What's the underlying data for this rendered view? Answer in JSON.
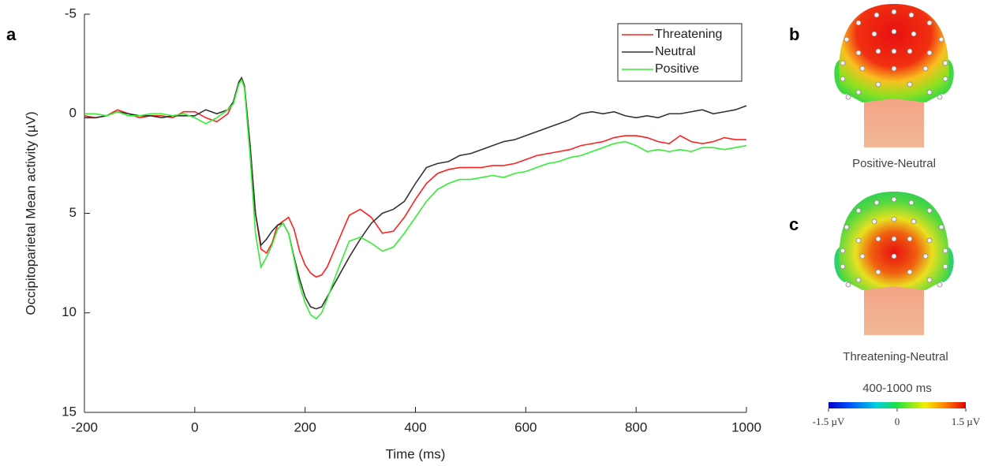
{
  "chart_data": {
    "type": "line",
    "panel_label": "a",
    "x_label": "Time (ms)",
    "y_label": "Occipitoparietal Mean activity (µV)",
    "xlim": [
      -200,
      1000
    ],
    "xticks": [
      -200,
      0,
      200,
      400,
      600,
      800,
      1000
    ],
    "ylim": [
      -5,
      15
    ],
    "yticks": [
      -5,
      0,
      5,
      10,
      15
    ],
    "y_reversed": true,
    "legend": "upper right",
    "x": [
      -200,
      -180,
      -160,
      -140,
      -120,
      -100,
      -80,
      -60,
      -40,
      -20,
      0,
      20,
      40,
      60,
      70,
      80,
      85,
      90,
      100,
      110,
      120,
      130,
      140,
      150,
      160,
      170,
      180,
      190,
      200,
      210,
      220,
      230,
      240,
      260,
      280,
      300,
      320,
      340,
      360,
      380,
      400,
      420,
      440,
      460,
      480,
      500,
      520,
      540,
      560,
      580,
      600,
      620,
      640,
      660,
      680,
      700,
      720,
      740,
      760,
      780,
      800,
      820,
      840,
      860,
      880,
      900,
      920,
      940,
      960,
      980,
      1000
    ],
    "series": [
      {
        "name": "Threatening",
        "color": "#ff2020",
        "values": [
          0.1,
          0.2,
          0.1,
          -0.2,
          0,
          0.2,
          0.1,
          0.1,
          0.2,
          -0.1,
          -0.1,
          0.2,
          0.4,
          0,
          -0.6,
          -1.6,
          -1.8,
          -1.4,
          1.5,
          5,
          6.8,
          7,
          6.5,
          5.6,
          5.4,
          5.2,
          5.8,
          6.9,
          7.6,
          8,
          8.2,
          8.1,
          7.7,
          6.4,
          5.1,
          4.8,
          5.2,
          6,
          5.9,
          5.2,
          4.3,
          3.5,
          3,
          2.8,
          2.7,
          2.7,
          2.7,
          2.6,
          2.6,
          2.5,
          2.3,
          2.1,
          2,
          1.9,
          1.8,
          1.6,
          1.5,
          1.4,
          1.2,
          1.1,
          1.1,
          1.2,
          1.4,
          1.5,
          1.1,
          1.4,
          1.5,
          1.4,
          1.2,
          1.3,
          1.3
        ]
      },
      {
        "name": "Neutral",
        "color": "#333333",
        "values": [
          0.2,
          0.2,
          0.1,
          -0.1,
          0,
          0.1,
          0.1,
          0.2,
          0.1,
          0.1,
          0.1,
          -0.2,
          0,
          -0.2,
          -0.6,
          -1.6,
          -1.8,
          -1.4,
          1.5,
          5,
          6.6,
          6.3,
          5.9,
          5.6,
          5.5,
          6,
          7.2,
          8.3,
          9.2,
          9.7,
          9.8,
          9.7,
          9.2,
          8.2,
          7.2,
          6.3,
          5.5,
          5,
          4.8,
          4.4,
          3.5,
          2.7,
          2.5,
          2.4,
          2.1,
          2,
          1.8,
          1.6,
          1.4,
          1.3,
          1.1,
          0.9,
          0.7,
          0.5,
          0.3,
          0,
          -0.1,
          0,
          -0.1,
          0.1,
          0.2,
          0.1,
          0.2,
          0,
          0,
          -0.1,
          -0.2,
          0,
          -0.1,
          -0.2,
          -0.4
        ]
      },
      {
        "name": "Positive",
        "color": "#33ee33",
        "values": [
          0,
          0,
          0.1,
          -0.1,
          0.1,
          0.1,
          0,
          0,
          0.1,
          0,
          0.2,
          0.5,
          0.2,
          -0.2,
          -0.5,
          -1.5,
          -1.7,
          -1.3,
          2,
          6,
          7.7,
          7.2,
          6.6,
          5.8,
          5.5,
          6,
          7.3,
          8.6,
          9.5,
          10.1,
          10.3,
          10,
          9.3,
          7.8,
          6.4,
          6.2,
          6.5,
          6.9,
          6.7,
          6,
          5.2,
          4.4,
          3.8,
          3.5,
          3.3,
          3.3,
          3.2,
          3.1,
          3.2,
          3,
          2.9,
          2.7,
          2.5,
          2.4,
          2.2,
          2.1,
          1.9,
          1.7,
          1.5,
          1.4,
          1.6,
          1.9,
          1.8,
          1.9,
          1.8,
          1.9,
          1.7,
          1.7,
          1.8,
          1.7,
          1.6
        ]
      }
    ]
  },
  "topomaps": [
    {
      "panel_label": "b",
      "caption": "Positive-Neutral"
    },
    {
      "panel_label": "c",
      "caption": "Threatening-Neutral"
    }
  ],
  "colorbar": {
    "title": "400-1000 ms",
    "lim": [
      -1.5,
      1.5
    ],
    "ticks": [
      {
        "value": -1.5,
        "label": "-1.5 µV"
      },
      0,
      {
        "value": 1.5,
        "label": "1.5 µV"
      }
    ]
  }
}
